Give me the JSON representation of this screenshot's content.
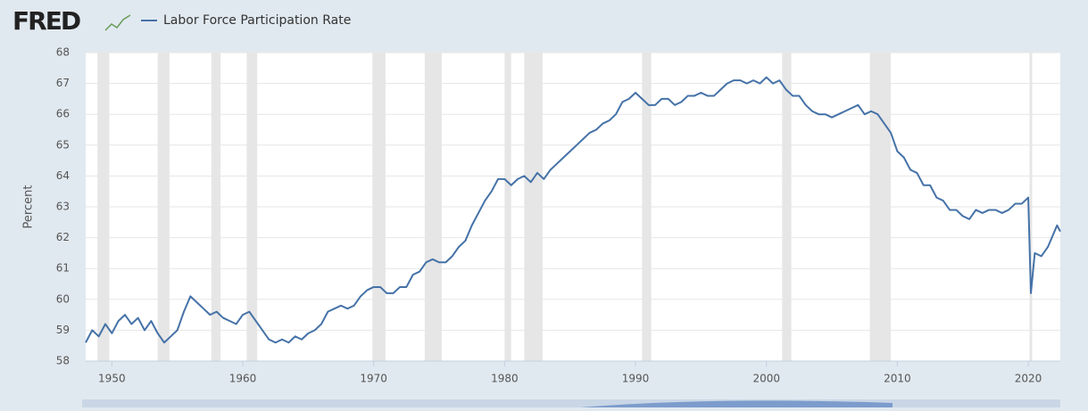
{
  "logo": "FRED",
  "chart_data": {
    "type": "line",
    "ylabel": "Percent",
    "xlim": [
      1948,
      2022.45
    ],
    "ylim": [
      58,
      68
    ],
    "xticks": [
      1950,
      1960,
      1970,
      1980,
      1990,
      2000,
      2010,
      2020
    ],
    "yticks": [
      58,
      59,
      60,
      61,
      62,
      63,
      64,
      65,
      66,
      67,
      68
    ],
    "grid": true,
    "recessions": [
      [
        1948.9,
        1949.8
      ],
      [
        1953.5,
        1954.4
      ],
      [
        1957.6,
        1958.3
      ],
      [
        1960.3,
        1961.1
      ],
      [
        1969.9,
        1970.9
      ],
      [
        1973.9,
        1975.2
      ],
      [
        1980.0,
        1980.5
      ],
      [
        1981.5,
        1982.9
      ],
      [
        1990.5,
        1991.2
      ],
      [
        2001.2,
        2001.9
      ],
      [
        2007.9,
        2009.5
      ],
      [
        2020.1,
        2020.3
      ]
    ],
    "x": [
      1948.0,
      1948.5,
      1949.0,
      1949.5,
      1950.0,
      1950.5,
      1951.0,
      1951.5,
      1952.0,
      1952.5,
      1953.0,
      1953.5,
      1954.0,
      1954.5,
      1955.0,
      1955.5,
      1956.0,
      1956.5,
      1957.0,
      1957.5,
      1958.0,
      1958.5,
      1959.0,
      1959.5,
      1960.0,
      1960.5,
      1961.0,
      1961.5,
      1962.0,
      1962.5,
      1963.0,
      1963.5,
      1964.0,
      1964.5,
      1965.0,
      1965.5,
      1966.0,
      1966.5,
      1967.0,
      1967.5,
      1968.0,
      1968.5,
      1969.0,
      1969.5,
      1970.0,
      1970.5,
      1971.0,
      1971.5,
      1972.0,
      1972.5,
      1973.0,
      1973.5,
      1974.0,
      1974.5,
      1975.0,
      1975.5,
      1976.0,
      1976.5,
      1977.0,
      1977.5,
      1978.0,
      1978.5,
      1979.0,
      1979.5,
      1980.0,
      1980.5,
      1981.0,
      1981.5,
      1982.0,
      1982.5,
      1983.0,
      1983.5,
      1984.0,
      1984.5,
      1985.0,
      1985.5,
      1986.0,
      1986.5,
      1987.0,
      1987.5,
      1988.0,
      1988.5,
      1989.0,
      1989.5,
      1990.0,
      1990.5,
      1991.0,
      1991.5,
      1992.0,
      1992.5,
      1993.0,
      1993.5,
      1994.0,
      1994.5,
      1995.0,
      1995.5,
      1996.0,
      1996.5,
      1997.0,
      1997.5,
      1998.0,
      1998.5,
      1999.0,
      1999.5,
      2000.0,
      2000.5,
      2001.0,
      2001.5,
      2002.0,
      2002.5,
      2003.0,
      2003.5,
      2004.0,
      2004.5,
      2005.0,
      2005.5,
      2006.0,
      2006.5,
      2007.0,
      2007.5,
      2008.0,
      2008.5,
      2009.0,
      2009.5,
      2010.0,
      2010.5,
      2011.0,
      2011.5,
      2012.0,
      2012.5,
      2013.0,
      2013.5,
      2014.0,
      2014.5,
      2015.0,
      2015.5,
      2016.0,
      2016.5,
      2017.0,
      2017.5,
      2018.0,
      2018.5,
      2019.0,
      2019.5,
      2020.0,
      2020.2,
      2020.5,
      2021.0,
      2021.5,
      2022.0,
      2022.2,
      2022.45
    ],
    "series": [
      {
        "name": "Labor Force Participation Rate",
        "color": "#4572a7",
        "values": [
          58.6,
          59.0,
          58.8,
          59.2,
          58.9,
          59.3,
          59.5,
          59.2,
          59.4,
          59.0,
          59.3,
          58.9,
          58.6,
          58.8,
          59.0,
          59.6,
          60.1,
          59.9,
          59.7,
          59.5,
          59.6,
          59.4,
          59.3,
          59.2,
          59.5,
          59.6,
          59.3,
          59.0,
          58.7,
          58.6,
          58.7,
          58.6,
          58.8,
          58.7,
          58.9,
          59.0,
          59.2,
          59.6,
          59.7,
          59.8,
          59.7,
          59.8,
          60.1,
          60.3,
          60.4,
          60.4,
          60.2,
          60.2,
          60.4,
          60.4,
          60.8,
          60.9,
          61.2,
          61.3,
          61.2,
          61.2,
          61.4,
          61.7,
          61.9,
          62.4,
          62.8,
          63.2,
          63.5,
          63.9,
          63.9,
          63.7,
          63.9,
          64.0,
          63.8,
          64.1,
          63.9,
          64.2,
          64.4,
          64.6,
          64.8,
          65.0,
          65.2,
          65.4,
          65.5,
          65.7,
          65.8,
          66.0,
          66.4,
          66.5,
          66.7,
          66.5,
          66.3,
          66.3,
          66.5,
          66.5,
          66.3,
          66.4,
          66.6,
          66.6,
          66.7,
          66.6,
          66.6,
          66.8,
          67.0,
          67.1,
          67.1,
          67.0,
          67.1,
          67.0,
          67.2,
          67.0,
          67.1,
          66.8,
          66.6,
          66.6,
          66.3,
          66.1,
          66.0,
          66.0,
          65.9,
          66.0,
          66.1,
          66.2,
          66.3,
          66.0,
          66.1,
          66.0,
          65.7,
          65.4,
          64.8,
          64.6,
          64.2,
          64.1,
          63.7,
          63.7,
          63.3,
          63.2,
          62.9,
          62.9,
          62.7,
          62.6,
          62.9,
          62.8,
          62.9,
          62.9,
          62.8,
          62.9,
          63.1,
          63.1,
          63.3,
          60.2,
          61.5,
          61.4,
          61.7,
          62.2,
          62.4,
          62.2
        ]
      }
    ]
  }
}
